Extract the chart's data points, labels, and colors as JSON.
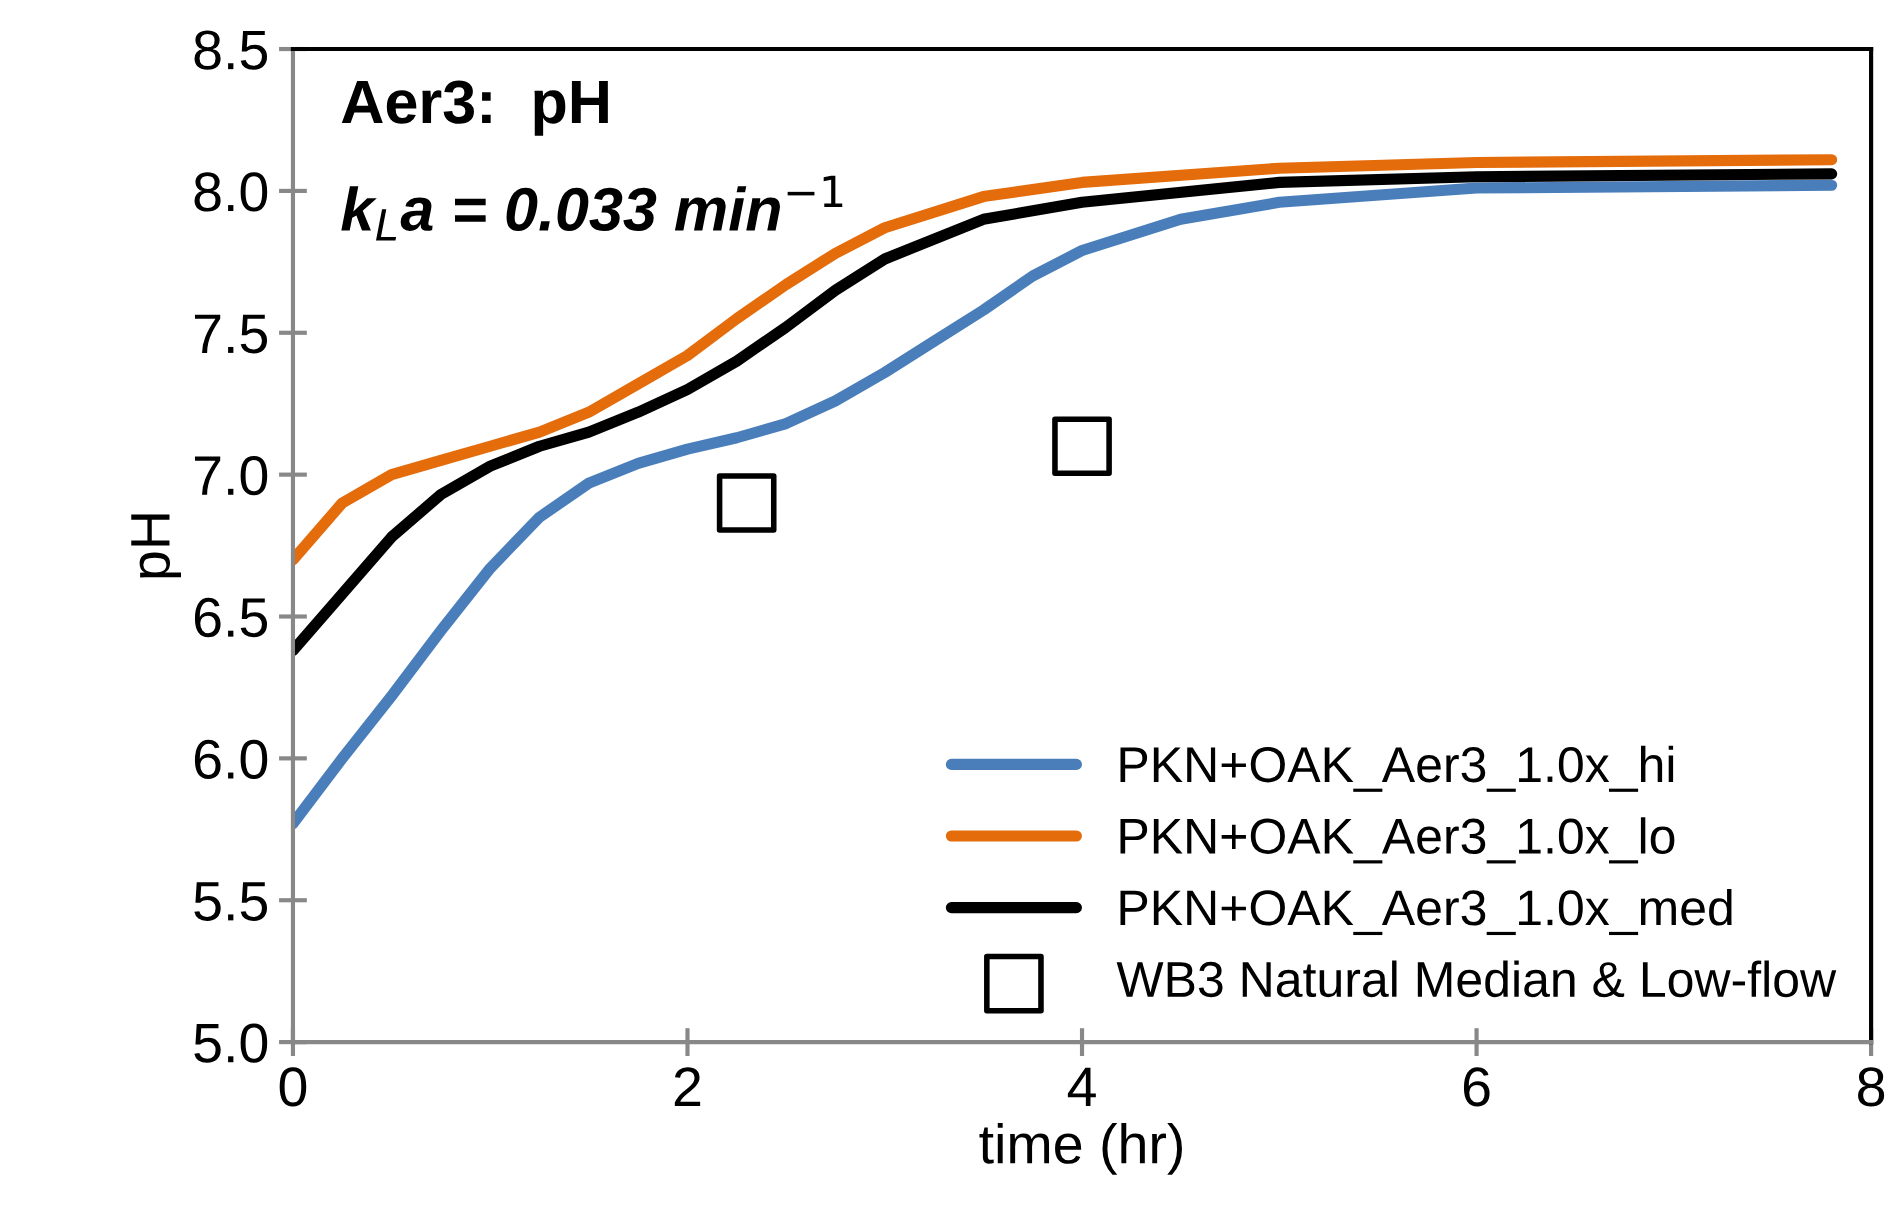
{
  "chart_data": {
    "type": "line",
    "title": "Aer3:  pH",
    "subtitle": "k$_{L}$a = 0.033 min$^{−1}$",
    "xlabel": "time (hr)",
    "ylabel": "pH",
    "xlim": [
      0,
      8
    ],
    "xticks": [
      0,
      2,
      4,
      6,
      8
    ],
    "ylim": [
      5.0,
      8.5
    ],
    "yticks": [
      {
        "value": 5.0,
        "label": "5.0"
      },
      {
        "value": 5.5,
        "label": "5.5"
      },
      {
        "value": 6.0,
        "label": "6.0"
      },
      {
        "value": 6.5,
        "label": "6.5"
      },
      {
        "value": 7.0,
        "label": "7.0"
      },
      {
        "value": 7.5,
        "label": "7.5"
      },
      {
        "value": 8.0,
        "label": "8.0"
      },
      {
        "value": 8.5,
        "label": "8.5"
      }
    ],
    "grid": false,
    "legend": "bottom right",
    "marker": "none",
    "line_style": "solid",
    "series": [
      {
        "name": "PKN+OAK_Aer3_1.0x_hi",
        "color": "#4a7ebb",
        "x": [
          0,
          0.25,
          0.5,
          0.75,
          1,
          1.25,
          1.5,
          1.75,
          2,
          2.25,
          2.5,
          2.75,
          3,
          3.25,
          3.5,
          3.75,
          4,
          4.5,
          5,
          6,
          7.8
        ],
        "values": [
          5.77,
          6.0,
          6.22,
          6.45,
          6.67,
          6.85,
          6.97,
          7.04,
          7.09,
          7.13,
          7.18,
          7.26,
          7.36,
          7.47,
          7.58,
          7.7,
          7.79,
          7.9,
          7.96,
          8.01,
          8.02
        ]
      },
      {
        "name": "PKN+OAK_Aer3_1.0x_lo",
        "color": "#e46c0a",
        "x": [
          0,
          0.25,
          0.5,
          0.75,
          1,
          1.25,
          1.5,
          1.75,
          2,
          2.25,
          2.5,
          2.75,
          3,
          3.5,
          4,
          5,
          6,
          7.8
        ],
        "values": [
          6.7,
          6.9,
          7.0,
          7.05,
          7.1,
          7.15,
          7.22,
          7.32,
          7.42,
          7.55,
          7.67,
          7.78,
          7.87,
          7.98,
          8.03,
          8.08,
          8.1,
          8.11
        ]
      },
      {
        "name": "PKN+OAK_Aer3_1.0x_med",
        "color": "#000000",
        "x": [
          0,
          0.25,
          0.5,
          0.75,
          1,
          1.25,
          1.5,
          1.75,
          2,
          2.25,
          2.5,
          2.75,
          3,
          3.5,
          4,
          5,
          6,
          7.8
        ],
        "values": [
          6.38,
          6.58,
          6.78,
          6.93,
          7.03,
          7.1,
          7.15,
          7.22,
          7.3,
          7.4,
          7.52,
          7.65,
          7.76,
          7.9,
          7.96,
          8.03,
          8.05,
          8.06
        ]
      },
      {
        "name": "WB3 Natural Median & Low-flow",
        "type": "scatter",
        "marker": "square",
        "color": "#000000",
        "x": [
          2.3,
          4.0
        ],
        "values": [
          6.9,
          7.1
        ]
      }
    ]
  }
}
